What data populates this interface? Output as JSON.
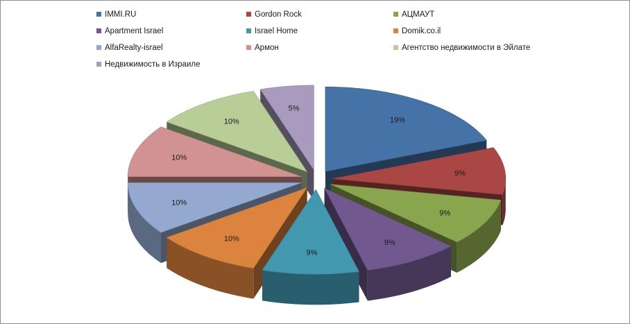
{
  "chart_data": {
    "type": "pie",
    "style": "3d-exploded",
    "legend_position": "top",
    "categories": [
      "IMMI.RU",
      "Gordon Rock",
      "АЦМАУТ",
      "Apartment Israel",
      "Israel Home",
      "Domik.co.il",
      "AlfaRealty-israel",
      "Армон",
      "Агентство недвижимости в Эйлате",
      "Недвижимость в Израиле"
    ],
    "values": [
      19,
      9,
      9,
      9,
      9,
      10,
      10,
      10,
      10,
      5
    ],
    "labels": [
      "19%",
      "9%",
      "9%",
      "9%",
      "9%",
      "10%",
      "10%",
      "10%",
      "10%",
      "5%"
    ],
    "colors": [
      "#4572a7",
      "#aa4643",
      "#89a54e",
      "#71588f",
      "#4198af",
      "#db843d",
      "#93a9cf",
      "#d19392",
      "#b9cd96",
      "#a99bbd"
    ]
  }
}
